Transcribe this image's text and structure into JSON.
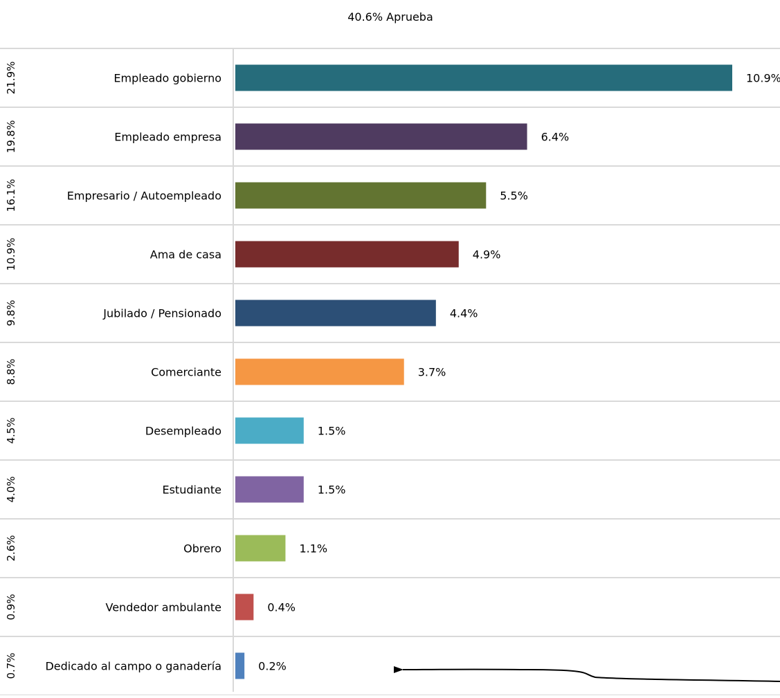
{
  "chart_data": {
    "type": "bar",
    "orientation": "horizontal",
    "title": "40.6% Aprueba",
    "categories": [
      "Empleado gobierno",
      "Empleado empresa",
      "Empresario / Autoempleado",
      "Ama de casa",
      "Jubilado / Pensionado",
      "Comerciante",
      "Desempleado",
      "Estudiante",
      "Obrero",
      "Vendedor ambulante",
      "Dedicado al campo o ganadería"
    ],
    "values": [
      10.9,
      6.4,
      5.5,
      4.9,
      4.4,
      3.7,
      1.5,
      1.5,
      1.1,
      0.4,
      0.2
    ],
    "value_labels": [
      "10.9%",
      "6.4%",
      "5.5%",
      "4.9%",
      "4.4%",
      "3.7%",
      "1.5%",
      "1.5%",
      "1.1%",
      "0.4%",
      "0.2%"
    ],
    "share_labels": [
      "21.9%",
      "19.8%",
      "16.1%",
      "10.9%",
      "9.8%",
      "8.8%",
      "4.5%",
      "4.0%",
      "2.6%",
      "0.9%",
      "0.7%"
    ],
    "colors": [
      "#266c7b",
      "#4f3b60",
      "#627431",
      "#772c2c",
      "#2c4f76",
      "#f59744",
      "#4bacc6",
      "#8064a2",
      "#9bbb59",
      "#c0504d",
      "#4f81bd"
    ],
    "xlim": [
      0,
      10.9
    ],
    "grid": true,
    "legend": "none",
    "annotation": "arrow pointing left toward Dedicado al campo o ganadería"
  }
}
